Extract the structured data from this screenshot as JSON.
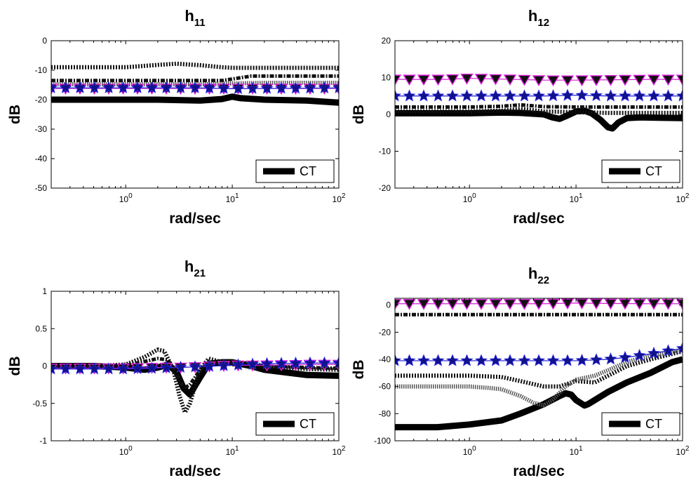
{
  "chart_data": [
    {
      "type": "line",
      "title": "h",
      "title_sub": "11",
      "xlabel": "rad/sec",
      "ylabel": "dB",
      "xscale": "log",
      "xlim": [
        0.2,
        100
      ],
      "ylim": [
        -50,
        0
      ],
      "yticks": [
        "-50",
        "-40",
        "-30",
        "-20",
        "-10",
        "0"
      ],
      "xticks": [
        {
          "base": "10",
          "exp": "0"
        },
        {
          "base": "10",
          "exp": "1"
        },
        {
          "base": "10",
          "exp": "2"
        }
      ],
      "legend": {
        "label": "CT",
        "placement": "lower-right"
      },
      "grid": false,
      "series": [
        {
          "style": "ct-thick-black",
          "x": [
            0.2,
            0.5,
            1,
            2,
            5,
            8,
            10,
            12,
            20,
            50,
            100
          ],
          "y": [
            -20,
            -20,
            -20,
            -20,
            -20.3,
            -19.8,
            -19,
            -19.5,
            -20,
            -20.3,
            -21
          ]
        },
        {
          "style": "dotted-black",
          "x": [
            0.2,
            0.5,
            1,
            2,
            3,
            5,
            8,
            10,
            20,
            50,
            100
          ],
          "y": [
            -9,
            -9,
            -9,
            -8.2,
            -7.8,
            -8.3,
            -9,
            -9.2,
            -9.2,
            -9.2,
            -9.2
          ]
        },
        {
          "style": "dashdot-black",
          "x": [
            0.2,
            0.5,
            1,
            2,
            5,
            8,
            10,
            15,
            20,
            50,
            100
          ],
          "y": [
            -13.5,
            -13.5,
            -13.5,
            -13.5,
            -13.5,
            -13.5,
            -13,
            -12,
            -12,
            -12,
            -12
          ]
        },
        {
          "style": "dotted-grey",
          "x": [
            0.2,
            1,
            5,
            10,
            20,
            50,
            100
          ],
          "y": [
            -14.8,
            -14.8,
            -14.8,
            -14.5,
            -14.3,
            -14.3,
            -14.3
          ]
        },
        {
          "style": "triangle-magenta",
          "x": [
            0.2,
            100
          ],
          "y": [
            -16.2,
            -16.2
          ]
        },
        {
          "style": "star-blue",
          "x": [
            0.2,
            1,
            5,
            10,
            20,
            50,
            100
          ],
          "y": [
            -16,
            -16,
            -16,
            -16.3,
            -16.2,
            -16.1,
            -16
          ]
        }
      ]
    },
    {
      "type": "line",
      "title": "h",
      "title_sub": "12",
      "xlabel": "rad/sec",
      "ylabel": "dB",
      "xscale": "log",
      "xlim": [
        0.2,
        100
      ],
      "ylim": [
        -20,
        20
      ],
      "yticks": [
        "-20",
        "-10",
        "0",
        "10",
        "20"
      ],
      "xticks": [
        {
          "base": "10",
          "exp": "0"
        },
        {
          "base": "10",
          "exp": "1"
        },
        {
          "base": "10",
          "exp": "2"
        }
      ],
      "legend": {
        "label": "CT",
        "placement": "lower-right"
      },
      "grid": false,
      "series": [
        {
          "style": "ct-thick-black",
          "x": [
            0.2,
            0.5,
            1,
            2,
            3,
            5,
            6,
            7,
            8,
            10,
            12,
            14,
            17,
            20,
            22,
            25,
            30,
            40,
            60,
            100
          ],
          "y": [
            0.3,
            0.3,
            0.3,
            0.5,
            0.4,
            0,
            -0.8,
            -1.2,
            -0.5,
            0.8,
            1,
            0.3,
            -1.5,
            -3.5,
            -3.8,
            -2.2,
            -1,
            -0.8,
            -0.9,
            -1
          ]
        },
        {
          "style": "dotted-black",
          "x": [
            0.2,
            1,
            2,
            3,
            5,
            10,
            20,
            50,
            100
          ],
          "y": [
            0.8,
            0.8,
            1,
            1.5,
            0.8,
            0.6,
            0.4,
            0.4,
            0.4
          ]
        },
        {
          "style": "dashdot-black",
          "x": [
            0.2,
            1,
            2,
            3,
            5,
            10,
            20,
            50,
            100
          ],
          "y": [
            2,
            2,
            2.2,
            2.6,
            2.1,
            2,
            2,
            2,
            2
          ]
        },
        {
          "style": "triangle-magenta",
          "x": [
            0.2,
            0.6,
            1,
            5,
            10,
            50,
            100
          ],
          "y": [
            9.5,
            9.5,
            9.8,
            9.3,
            9.3,
            9.5,
            9.5
          ]
        },
        {
          "style": "star-blue",
          "x": [
            0.2,
            1,
            5,
            10,
            20,
            50,
            100
          ],
          "y": [
            5,
            5,
            5,
            5.2,
            5,
            5,
            5
          ]
        }
      ]
    },
    {
      "type": "line",
      "title": "h",
      "title_sub": "21",
      "xlabel": "rad/sec",
      "ylabel": "dB",
      "xscale": "log",
      "xlim": [
        0.2,
        100
      ],
      "ylim": [
        -1,
        1
      ],
      "yticks": [
        "-1",
        "-0.5",
        "0",
        "0.5",
        "1"
      ],
      "xticks": [
        {
          "base": "10",
          "exp": "0"
        },
        {
          "base": "10",
          "exp": "1"
        },
        {
          "base": "10",
          "exp": "2"
        }
      ],
      "legend": {
        "label": "CT",
        "placement": "lower-right"
      },
      "grid": false,
      "series": [
        {
          "style": "ct-thick-black",
          "x": [
            0.2,
            0.5,
            1,
            1.5,
            2,
            2.5,
            3,
            3.5,
            4,
            5,
            6,
            8,
            10,
            15,
            20,
            50,
            100
          ],
          "y": [
            0,
            0,
            -0.02,
            -0.05,
            -0.02,
            0.02,
            -0.08,
            -0.3,
            -0.38,
            -0.15,
            0.03,
            0.05,
            0.05,
            0,
            -0.05,
            -0.12,
            -0.13
          ]
        },
        {
          "style": "dotted-black",
          "x": [
            0.2,
            0.5,
            1,
            1.5,
            2,
            2.3,
            2.8,
            3.2,
            3.6,
            4,
            5,
            6,
            8,
            10,
            15,
            20,
            50,
            100
          ],
          "y": [
            0,
            0,
            0.02,
            0.12,
            0.22,
            0.2,
            -0.05,
            -0.4,
            -0.62,
            -0.5,
            -0.05,
            0.1,
            0.05,
            0.06,
            0.03,
            0,
            -0.04,
            -0.05
          ]
        },
        {
          "style": "dashdot-black",
          "x": [
            0.2,
            0.5,
            1,
            1.5,
            2,
            2.5,
            3,
            3.5,
            4,
            5,
            6,
            8,
            10,
            20,
            50,
            100
          ],
          "y": [
            0,
            0,
            0.01,
            0.06,
            0.1,
            0.08,
            -0.1,
            -0.3,
            -0.25,
            -0.05,
            0.05,
            0.04,
            0.02,
            0,
            -0.02,
            -0.03
          ]
        },
        {
          "style": "triangle-magenta",
          "x": [
            0.2,
            1,
            2,
            3,
            5,
            10,
            20,
            50,
            100
          ],
          "y": [
            -0.03,
            -0.03,
            -0.02,
            -0.02,
            -0.01,
            0.01,
            0.01,
            0.02,
            0.02
          ]
        },
        {
          "style": "star-blue",
          "x": [
            0.2,
            1,
            2,
            3,
            5,
            10,
            20,
            50,
            100
          ],
          "y": [
            -0.04,
            -0.04,
            -0.03,
            -0.02,
            -0.01,
            0.01,
            0.03,
            0.04,
            0.04
          ]
        }
      ]
    },
    {
      "type": "line",
      "title": "h",
      "title_sub": "22",
      "xlabel": "rad/sec",
      "ylabel": "dB",
      "xscale": "log",
      "xlim": [
        0.2,
        100
      ],
      "ylim": [
        -100,
        5
      ],
      "yticks": [
        "-100",
        "-80",
        "-60",
        "-40",
        "-20",
        "0"
      ],
      "xticks": [
        {
          "base": "10",
          "exp": "0"
        },
        {
          "base": "10",
          "exp": "1"
        },
        {
          "base": "10",
          "exp": "2"
        }
      ],
      "legend": {
        "label": "CT",
        "placement": "lower-right"
      },
      "grid": false,
      "series": [
        {
          "style": "ct-thick-black",
          "x": [
            0.2,
            0.5,
            1,
            2,
            3,
            5,
            7,
            8,
            9,
            10,
            12,
            13,
            15,
            20,
            30,
            50,
            80,
            100
          ],
          "y": [
            -90,
            -90,
            -88,
            -85,
            -80,
            -73,
            -67,
            -65,
            -66,
            -70,
            -74,
            -73,
            -70,
            -64,
            -57,
            -50,
            -42,
            -40
          ]
        },
        {
          "style": "dotted-black",
          "x": [
            0.2,
            0.5,
            1,
            2,
            3,
            5,
            7,
            10,
            15,
            20,
            30,
            50,
            100
          ],
          "y": [
            -52,
            -52,
            -52,
            -53,
            -56,
            -60,
            -60,
            -56,
            -57,
            -52,
            -45,
            -40,
            -34
          ]
        },
        {
          "style": "dotted-grey",
          "x": [
            0.2,
            0.5,
            1,
            1.5,
            2,
            3,
            4,
            5,
            6,
            8,
            10,
            15,
            20,
            30,
            50,
            100
          ],
          "y": [
            -60,
            -60,
            -60,
            -61,
            -62,
            -67,
            -72,
            -74,
            -70,
            -60,
            -55,
            -52,
            -48,
            -42,
            -37,
            -33
          ]
        },
        {
          "style": "dashdot-black",
          "x": [
            0.2,
            1,
            5,
            10,
            20,
            50,
            100
          ],
          "y": [
            -7,
            -7,
            -7,
            -7,
            -7,
            -7,
            -7
          ]
        },
        {
          "style": "triangle-magenta",
          "x": [
            0.2,
            1,
            5,
            10,
            20,
            50,
            100
          ],
          "y": [
            1,
            1,
            1,
            1.5,
            1.2,
            1,
            1
          ]
        },
        {
          "style": "star-blue",
          "x": [
            0.2,
            1,
            5,
            10,
            20,
            30,
            50,
            70,
            100
          ],
          "y": [
            -41,
            -41,
            -41,
            -41,
            -40,
            -38.5,
            -36,
            -34,
            -32
          ]
        }
      ]
    }
  ]
}
